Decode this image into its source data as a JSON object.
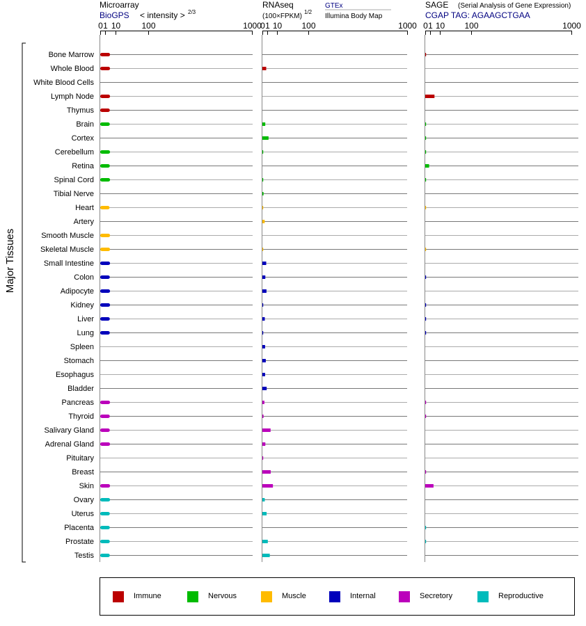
{
  "colors": {
    "Immune": "#bb0000",
    "Nervous": "#00bb00",
    "Muscle": "#ffbb00",
    "Internal": "#0000bb",
    "Secretory": "#bb00bb",
    "Reproductive": "#00bbbb"
  },
  "header": {
    "micro_title": "Microarray",
    "micro_source": "BioGPS",
    "micro_unit": "< intensity >",
    "micro_unit_exp": "2/3",
    "rna_title": "RNAseq",
    "rna_unit": "(100×FPKM)",
    "rna_unit_exp": "1/2",
    "rna_source1": "GTEx",
    "rna_source2": "Illumina Body Map",
    "sage_title": "SAGE",
    "sage_subtitle": "(Serial Analysis of Gene Expression)",
    "sage_tag": "CGAP TAG: AGAAGCTGAA"
  },
  "y_group_label": "Major Tissues",
  "chart_data": {
    "type": "bar",
    "orientation": "horizontal",
    "scale": "sqrt",
    "xlim": [
      0,
      1000
    ],
    "xticks": [
      "0",
      "1",
      "10",
      "100",
      "1000"
    ],
    "xtick_values": [
      0,
      1,
      10,
      100,
      1000
    ],
    "categories": [
      "Bone Marrow",
      "Whole Blood",
      "White Blood Cells",
      "Lymph Node",
      "Thymus",
      "Brain",
      "Cortex",
      "Cerebellum",
      "Retina",
      "Spinal Cord",
      "Tibial Nerve",
      "Heart",
      "Artery",
      "Smooth Muscle",
      "Skeletal Muscle",
      "Small Intestine",
      "Colon",
      "Adipocyte",
      "Kidney",
      "Liver",
      "Lung",
      "Spleen",
      "Stomach",
      "Esophagus",
      "Bladder",
      "Pancreas",
      "Thyroid",
      "Salivary Gland",
      "Adrenal Gland",
      "Pituitary",
      "Breast",
      "Skin",
      "Ovary",
      "Uterus",
      "Placenta",
      "Prostate",
      "Testis"
    ],
    "groups": [
      "Immune",
      "Immune",
      "Immune",
      "Immune",
      "Immune",
      "Nervous",
      "Nervous",
      "Nervous",
      "Nervous",
      "Nervous",
      "Nervous",
      "Muscle",
      "Muscle",
      "Muscle",
      "Muscle",
      "Internal",
      "Internal",
      "Internal",
      "Internal",
      "Internal",
      "Internal",
      "Internal",
      "Internal",
      "Internal",
      "Internal",
      "Secretory",
      "Secretory",
      "Secretory",
      "Secretory",
      "Secretory",
      "Secretory",
      "Secretory",
      "Reproductive",
      "Reproductive",
      "Reproductive",
      "Reproductive",
      "Reproductive"
    ],
    "series": [
      {
        "name": "Microarray",
        "values": [
          4.2,
          4.2,
          null,
          4.2,
          4.0,
          4.0,
          null,
          4.2,
          4.0,
          4.2,
          null,
          3.8,
          null,
          4.2,
          4.2,
          4.2,
          4.0,
          4.2,
          4.2,
          4.0,
          4.0,
          null,
          null,
          null,
          null,
          4.2,
          4.0,
          4.0,
          4.2,
          null,
          null,
          4.2,
          4.2,
          4.0,
          4.0,
          4.0,
          4.0
        ]
      },
      {
        "name": "RNAseq",
        "values": [
          null,
          0.7,
          null,
          null,
          null,
          0.4,
          1.8,
          0.01,
          null,
          0.01,
          0.06,
          0.006,
          0.25,
          null,
          0.01,
          0.7,
          0.42,
          0.8,
          0.01,
          0.28,
          0.01,
          0.35,
          0.55,
          0.35,
          0.88,
          0.19,
          0.06,
          3.2,
          0.42,
          0.006,
          3.3,
          5.3,
          0.27,
          0.85,
          null,
          1.4,
          2.6
        ]
      },
      {
        "name": "SAGE",
        "values": [
          0.003,
          null,
          null,
          4.0,
          null,
          0.002,
          0.002,
          0.002,
          0.7,
          0.002,
          null,
          0.002,
          null,
          null,
          0.002,
          null,
          0.01,
          null,
          0.01,
          0.01,
          0.01,
          null,
          null,
          null,
          null,
          0.01,
          0.01,
          null,
          null,
          null,
          0.01,
          3.2,
          null,
          null,
          0.002,
          0.002,
          null
        ]
      }
    ]
  },
  "legend": [
    {
      "label": "Immune",
      "color": "#bb0000"
    },
    {
      "label": "Nervous",
      "color": "#00bb00"
    },
    {
      "label": "Muscle",
      "color": "#ffbb00"
    },
    {
      "label": "Internal",
      "color": "#0000bb"
    },
    {
      "label": "Secretory",
      "color": "#bb00bb"
    },
    {
      "label": "Reproductive",
      "color": "#00bbbb"
    }
  ]
}
